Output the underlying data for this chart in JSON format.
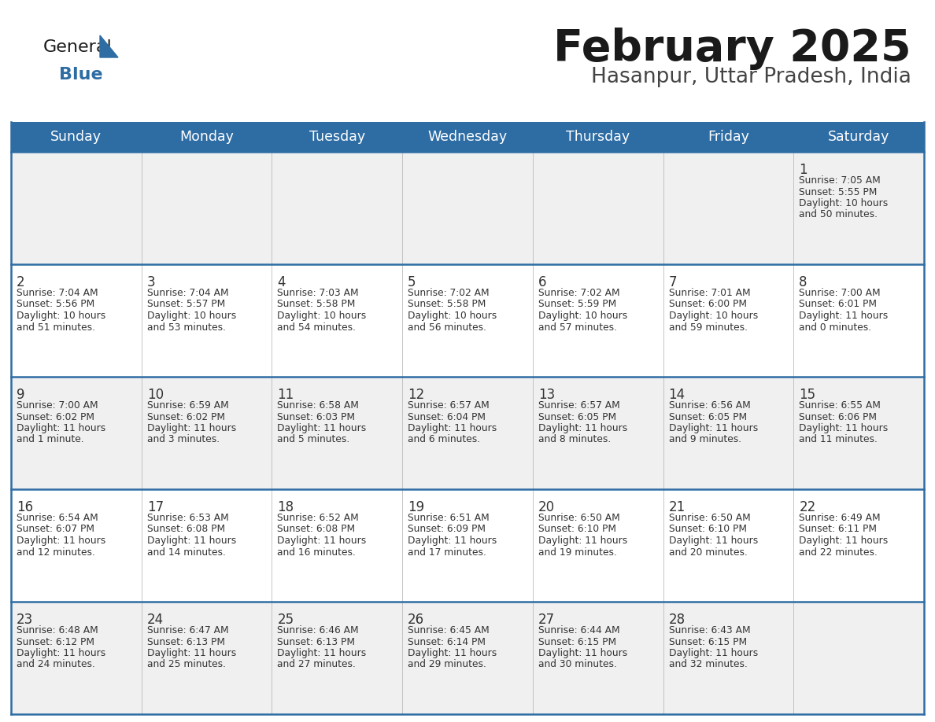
{
  "title": "February 2025",
  "subtitle": "Hasanpur, Uttar Pradesh, India",
  "days_of_week": [
    "Sunday",
    "Monday",
    "Tuesday",
    "Wednesday",
    "Thursday",
    "Friday",
    "Saturday"
  ],
  "header_bg": "#2E6DA4",
  "header_text": "#FFFFFF",
  "row_bg_light": "#F0F0F0",
  "row_bg_white": "#FFFFFF",
  "separator_color": "#2E6DA4",
  "cell_text_color": "#333333",
  "day_num_color": "#333333",
  "title_color": "#1a1a1a",
  "subtitle_color": "#444444",
  "logo_general_color": "#1a1a1a",
  "logo_blue_color": "#2E6DA4",
  "logo_triangle_color": "#2E6DA4",
  "calendar_data": [
    [
      null,
      null,
      null,
      null,
      null,
      null,
      {
        "day": 1,
        "sunrise": "7:05 AM",
        "sunset": "5:55 PM",
        "daylight": "10 hours and 50 minutes."
      }
    ],
    [
      {
        "day": 2,
        "sunrise": "7:04 AM",
        "sunset": "5:56 PM",
        "daylight": "10 hours and 51 minutes."
      },
      {
        "day": 3,
        "sunrise": "7:04 AM",
        "sunset": "5:57 PM",
        "daylight": "10 hours and 53 minutes."
      },
      {
        "day": 4,
        "sunrise": "7:03 AM",
        "sunset": "5:58 PM",
        "daylight": "10 hours and 54 minutes."
      },
      {
        "day": 5,
        "sunrise": "7:02 AM",
        "sunset": "5:58 PM",
        "daylight": "10 hours and 56 minutes."
      },
      {
        "day": 6,
        "sunrise": "7:02 AM",
        "sunset": "5:59 PM",
        "daylight": "10 hours and 57 minutes."
      },
      {
        "day": 7,
        "sunrise": "7:01 AM",
        "sunset": "6:00 PM",
        "daylight": "10 hours and 59 minutes."
      },
      {
        "day": 8,
        "sunrise": "7:00 AM",
        "sunset": "6:01 PM",
        "daylight": "11 hours and 0 minutes."
      }
    ],
    [
      {
        "day": 9,
        "sunrise": "7:00 AM",
        "sunset": "6:02 PM",
        "daylight": "11 hours and 1 minute."
      },
      {
        "day": 10,
        "sunrise": "6:59 AM",
        "sunset": "6:02 PM",
        "daylight": "11 hours and 3 minutes."
      },
      {
        "day": 11,
        "sunrise": "6:58 AM",
        "sunset": "6:03 PM",
        "daylight": "11 hours and 5 minutes."
      },
      {
        "day": 12,
        "sunrise": "6:57 AM",
        "sunset": "6:04 PM",
        "daylight": "11 hours and 6 minutes."
      },
      {
        "day": 13,
        "sunrise": "6:57 AM",
        "sunset": "6:05 PM",
        "daylight": "11 hours and 8 minutes."
      },
      {
        "day": 14,
        "sunrise": "6:56 AM",
        "sunset": "6:05 PM",
        "daylight": "11 hours and 9 minutes."
      },
      {
        "day": 15,
        "sunrise": "6:55 AM",
        "sunset": "6:06 PM",
        "daylight": "11 hours and 11 minutes."
      }
    ],
    [
      {
        "day": 16,
        "sunrise": "6:54 AM",
        "sunset": "6:07 PM",
        "daylight": "11 hours and 12 minutes."
      },
      {
        "day": 17,
        "sunrise": "6:53 AM",
        "sunset": "6:08 PM",
        "daylight": "11 hours and 14 minutes."
      },
      {
        "day": 18,
        "sunrise": "6:52 AM",
        "sunset": "6:08 PM",
        "daylight": "11 hours and 16 minutes."
      },
      {
        "day": 19,
        "sunrise": "6:51 AM",
        "sunset": "6:09 PM",
        "daylight": "11 hours and 17 minutes."
      },
      {
        "day": 20,
        "sunrise": "6:50 AM",
        "sunset": "6:10 PM",
        "daylight": "11 hours and 19 minutes."
      },
      {
        "day": 21,
        "sunrise": "6:50 AM",
        "sunset": "6:10 PM",
        "daylight": "11 hours and 20 minutes."
      },
      {
        "day": 22,
        "sunrise": "6:49 AM",
        "sunset": "6:11 PM",
        "daylight": "11 hours and 22 minutes."
      }
    ],
    [
      {
        "day": 23,
        "sunrise": "6:48 AM",
        "sunset": "6:12 PM",
        "daylight": "11 hours and 24 minutes."
      },
      {
        "day": 24,
        "sunrise": "6:47 AM",
        "sunset": "6:13 PM",
        "daylight": "11 hours and 25 minutes."
      },
      {
        "day": 25,
        "sunrise": "6:46 AM",
        "sunset": "6:13 PM",
        "daylight": "11 hours and 27 minutes."
      },
      {
        "day": 26,
        "sunrise": "6:45 AM",
        "sunset": "6:14 PM",
        "daylight": "11 hours and 29 minutes."
      },
      {
        "day": 27,
        "sunrise": "6:44 AM",
        "sunset": "6:15 PM",
        "daylight": "11 hours and 30 minutes."
      },
      {
        "day": 28,
        "sunrise": "6:43 AM",
        "sunset": "6:15 PM",
        "daylight": "11 hours and 32 minutes."
      },
      null
    ]
  ]
}
